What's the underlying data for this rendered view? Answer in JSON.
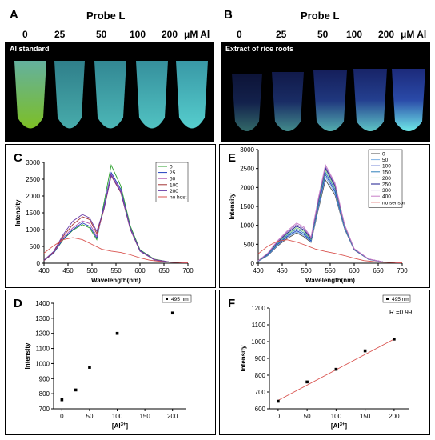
{
  "top_left": {
    "letter": "A",
    "title": "Probe L",
    "concentrations": [
      "0",
      "25",
      "50",
      "100",
      "200"
    ],
    "unit": "μM Al",
    "photo_label": "Al standard"
  },
  "top_right": {
    "letter": "B",
    "title": "Probe L",
    "concentrations": [
      "0",
      "25",
      "50",
      "100",
      "200"
    ],
    "unit": "μM Al",
    "photo_label": "Extract of rice roots"
  },
  "colors": {
    "tube_glow": "#5fe4e4",
    "tube_green": "#8bd42a",
    "line_red": "#d9534f"
  },
  "chart_data": [
    {
      "panel": "C",
      "type": "line",
      "xlabel": "Wavelength(nm)",
      "ylabel": "Intensity",
      "xlim": [
        400,
        700
      ],
      "ylim": [
        0,
        3000
      ],
      "xticks": [
        400,
        450,
        500,
        550,
        600,
        650,
        700
      ],
      "yticks": [
        0,
        500,
        1000,
        1500,
        2000,
        2500,
        3000
      ],
      "legend_position": "top-right",
      "series": [
        {
          "name": "0",
          "color": "#2ca02c",
          "x": [
            400,
            420,
            440,
            460,
            480,
            495,
            510,
            525,
            540,
            560,
            580,
            600,
            630,
            660,
            700
          ],
          "y": [
            80,
            300,
            700,
            980,
            1150,
            1050,
            700,
            1800,
            2920,
            2300,
            1100,
            400,
            120,
            40,
            10
          ]
        },
        {
          "name": "25",
          "color": "#1f3fbf",
          "x": [
            400,
            420,
            440,
            460,
            480,
            495,
            510,
            525,
            540,
            560,
            580,
            600,
            630,
            660,
            700
          ],
          "y": [
            80,
            300,
            720,
            1000,
            1200,
            1100,
            750,
            1700,
            2700,
            2200,
            1050,
            380,
            110,
            40,
            10
          ]
        },
        {
          "name": "50",
          "color": "#b05bb0",
          "x": [
            400,
            420,
            440,
            460,
            480,
            495,
            510,
            525,
            540,
            560,
            580,
            600,
            630,
            660,
            700
          ],
          "y": [
            80,
            320,
            760,
            1050,
            1260,
            1180,
            800,
            1650,
            2650,
            2150,
            1030,
            370,
            110,
            40,
            10
          ]
        },
        {
          "name": "100",
          "color": "#a33232",
          "x": [
            400,
            420,
            440,
            460,
            480,
            495,
            510,
            525,
            540,
            560,
            580,
            600,
            630,
            660,
            700
          ],
          "y": [
            80,
            330,
            800,
            1150,
            1380,
            1300,
            880,
            1600,
            2600,
            2100,
            1000,
            360,
            100,
            35,
            10
          ]
        },
        {
          "name": "200",
          "color": "#6a3da8",
          "x": [
            400,
            420,
            440,
            460,
            480,
            495,
            510,
            525,
            540,
            560,
            580,
            600,
            630,
            660,
            700
          ],
          "y": [
            90,
            350,
            850,
            1250,
            1450,
            1350,
            950,
            1620,
            2620,
            2120,
            1010,
            360,
            100,
            35,
            10
          ]
        },
        {
          "name": "no host",
          "color": "#d9534f",
          "x": [
            400,
            420,
            440,
            460,
            480,
            500,
            520,
            540,
            560,
            580,
            600,
            620,
            650,
            700
          ],
          "y": [
            300,
            520,
            700,
            760,
            700,
            560,
            420,
            360,
            320,
            250,
            160,
            90,
            40,
            10
          ]
        }
      ]
    },
    {
      "panel": "E",
      "type": "line",
      "xlabel": "Wavelength(nm)",
      "ylabel": "Intensity",
      "xlim": [
        400,
        700
      ],
      "ylim": [
        0,
        3000
      ],
      "xticks": [
        400,
        450,
        500,
        550,
        600,
        650,
        700
      ],
      "yticks": [
        0,
        500,
        1000,
        1500,
        2000,
        2500,
        3000
      ],
      "legend_position": "top-right",
      "series": [
        {
          "name": "0",
          "color": "#4d4d4d",
          "x": [
            400,
            420,
            440,
            460,
            480,
            495,
            510,
            525,
            540,
            560,
            580,
            600,
            630,
            660,
            700
          ],
          "y": [
            50,
            200,
            450,
            650,
            800,
            700,
            550,
            1400,
            2200,
            1800,
            900,
            350,
            100,
            35,
            10
          ]
        },
        {
          "name": "50",
          "color": "#7fb2e5",
          "x": [
            400,
            420,
            440,
            460,
            480,
            495,
            510,
            525,
            540,
            560,
            580,
            600,
            630,
            660,
            700
          ],
          "y": [
            50,
            210,
            470,
            680,
            830,
            730,
            570,
            1450,
            2280,
            1850,
            920,
            355,
            100,
            35,
            10
          ]
        },
        {
          "name": "100",
          "color": "#1f3fbf",
          "x": [
            400,
            420,
            440,
            460,
            480,
            495,
            510,
            525,
            540,
            560,
            580,
            600,
            630,
            660,
            700
          ],
          "y": [
            55,
            220,
            490,
            700,
            860,
            760,
            590,
            1500,
            2340,
            1900,
            940,
            360,
            105,
            35,
            10
          ]
        },
        {
          "name": "150",
          "color": "#2c7fb8",
          "x": [
            400,
            420,
            440,
            460,
            480,
            495,
            510,
            525,
            540,
            560,
            580,
            600,
            630,
            660,
            700
          ],
          "y": [
            55,
            230,
            510,
            730,
            900,
            800,
            610,
            1550,
            2400,
            1950,
            960,
            365,
            105,
            35,
            10
          ]
        },
        {
          "name": "200",
          "color": "#7fc97f",
          "x": [
            400,
            420,
            440,
            460,
            480,
            495,
            510,
            525,
            540,
            560,
            580,
            600,
            630,
            660,
            700
          ],
          "y": [
            60,
            240,
            530,
            760,
            940,
            840,
            630,
            1580,
            2460,
            2000,
            980,
            370,
            110,
            35,
            10
          ]
        },
        {
          "name": "250",
          "color": "#1a1a8c",
          "x": [
            400,
            420,
            440,
            460,
            480,
            495,
            510,
            525,
            540,
            560,
            580,
            600,
            630,
            660,
            700
          ],
          "y": [
            60,
            250,
            550,
            790,
            980,
            880,
            650,
            1620,
            2510,
            2040,
            1000,
            375,
            110,
            35,
            10
          ]
        },
        {
          "name": "300",
          "color": "#9467bd",
          "x": [
            400,
            420,
            440,
            460,
            480,
            495,
            510,
            525,
            540,
            560,
            580,
            600,
            630,
            660,
            700
          ],
          "y": [
            65,
            260,
            570,
            820,
            1020,
            920,
            670,
            1660,
            2550,
            2080,
            1010,
            380,
            110,
            35,
            10
          ]
        },
        {
          "name": "400",
          "color": "#c77dc7",
          "x": [
            400,
            420,
            440,
            460,
            480,
            495,
            510,
            525,
            540,
            560,
            580,
            600,
            630,
            660,
            700
          ],
          "y": [
            65,
            270,
            590,
            850,
            1060,
            960,
            690,
            1700,
            2600,
            2120,
            1020,
            385,
            115,
            35,
            10
          ]
        },
        {
          "name": "no sensor",
          "color": "#d9534f",
          "x": [
            400,
            420,
            440,
            460,
            480,
            500,
            520,
            540,
            560,
            580,
            600,
            620,
            650,
            700
          ],
          "y": [
            250,
            450,
            580,
            620,
            560,
            470,
            370,
            310,
            260,
            200,
            130,
            70,
            30,
            10
          ]
        }
      ]
    },
    {
      "panel": "D",
      "type": "scatter",
      "xlabel": "[Al",
      "xlabel_sup": "3+",
      "xlabel_end": "]",
      "ylabel": "Intensity",
      "xlim": [
        -15,
        225
      ],
      "ylim": [
        700,
        1400
      ],
      "xticks": [
        0,
        50,
        100,
        150,
        200
      ],
      "yticks": [
        700,
        800,
        900,
        1000,
        1100,
        1200,
        1300,
        1400
      ],
      "legend_position": "top-right",
      "series": [
        {
          "name": "495 nm",
          "x": [
            0,
            25,
            50,
            100,
            200
          ],
          "y": [
            760,
            825,
            975,
            1200,
            1335
          ]
        }
      ]
    },
    {
      "panel": "F",
      "type": "scatter",
      "xlabel": "[Al",
      "xlabel_sup": "3+",
      "xlabel_end": "]",
      "ylabel": "Intensity",
      "xlim": [
        -15,
        225
      ],
      "ylim": [
        600,
        1200
      ],
      "xticks": [
        0,
        50,
        100,
        150,
        200
      ],
      "yticks": [
        600,
        700,
        800,
        900,
        1000,
        1100,
        1200
      ],
      "legend_position": "top-right",
      "annotation": "R =0.99",
      "fit_line": {
        "x": [
          0,
          200
        ],
        "y": [
          650,
          1015
        ]
      },
      "series": [
        {
          "name": "495 nm",
          "x": [
            0,
            50,
            100,
            150,
            200
          ],
          "y": [
            645,
            760,
            835,
            945,
            1015
          ]
        }
      ]
    }
  ]
}
